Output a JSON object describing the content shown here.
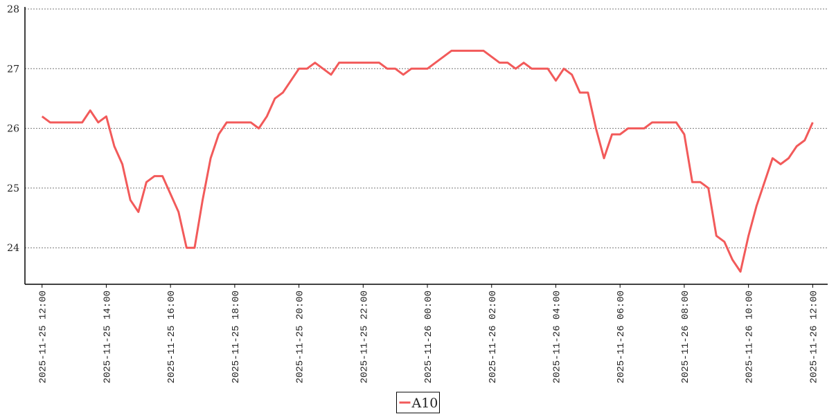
{
  "chart_data": {
    "type": "line",
    "x": [
      "2025-11-25 12:00",
      "2025-11-25 12:15",
      "2025-11-25 12:30",
      "2025-11-25 12:45",
      "2025-11-25 13:00",
      "2025-11-25 13:15",
      "2025-11-25 13:30",
      "2025-11-25 13:45",
      "2025-11-25 14:00",
      "2025-11-25 14:15",
      "2025-11-25 14:30",
      "2025-11-25 14:45",
      "2025-11-25 15:00",
      "2025-11-25 15:15",
      "2025-11-25 15:30",
      "2025-11-25 15:45",
      "2025-11-25 16:00",
      "2025-11-25 16:15",
      "2025-11-25 16:30",
      "2025-11-25 16:45",
      "2025-11-25 17:00",
      "2025-11-25 17:15",
      "2025-11-25 17:30",
      "2025-11-25 17:45",
      "2025-11-25 18:00",
      "2025-11-25 18:15",
      "2025-11-25 18:30",
      "2025-11-25 18:45",
      "2025-11-25 19:00",
      "2025-11-25 19:15",
      "2025-11-25 19:30",
      "2025-11-25 19:45",
      "2025-11-25 20:00",
      "2025-11-25 20:15",
      "2025-11-25 20:30",
      "2025-11-25 20:45",
      "2025-11-25 21:00",
      "2025-11-25 21:15",
      "2025-11-25 21:30",
      "2025-11-25 21:45",
      "2025-11-25 22:00",
      "2025-11-25 22:15",
      "2025-11-25 22:30",
      "2025-11-25 22:45",
      "2025-11-25 23:00",
      "2025-11-25 23:15",
      "2025-11-25 23:30",
      "2025-11-25 23:45",
      "2025-11-26 00:00",
      "2025-11-26 00:15",
      "2025-11-26 00:30",
      "2025-11-26 00:45",
      "2025-11-26 01:00",
      "2025-11-26 01:15",
      "2025-11-26 01:30",
      "2025-11-26 01:45",
      "2025-11-26 02:00",
      "2025-11-26 02:15",
      "2025-11-26 02:30",
      "2025-11-26 02:45",
      "2025-11-26 03:00",
      "2025-11-26 03:15",
      "2025-11-26 03:30",
      "2025-11-26 03:45",
      "2025-11-26 04:00",
      "2025-11-26 04:15",
      "2025-11-26 04:30",
      "2025-11-26 04:45",
      "2025-11-26 05:00",
      "2025-11-26 05:15",
      "2025-11-26 05:30",
      "2025-11-26 05:45",
      "2025-11-26 06:00",
      "2025-11-26 06:15",
      "2025-11-26 06:30",
      "2025-11-26 06:45",
      "2025-11-26 07:00",
      "2025-11-26 07:15",
      "2025-11-26 07:30",
      "2025-11-26 07:45",
      "2025-11-26 08:00",
      "2025-11-26 08:15",
      "2025-11-26 08:30",
      "2025-11-26 08:45",
      "2025-11-26 09:00",
      "2025-11-26 09:15",
      "2025-11-26 09:30",
      "2025-11-26 09:45",
      "2025-11-26 10:00",
      "2025-11-26 10:15",
      "2025-11-26 10:30",
      "2025-11-26 10:45",
      "2025-11-26 11:00",
      "2025-11-26 11:15",
      "2025-11-26 11:30",
      "2025-11-26 11:45",
      "2025-11-26 12:00"
    ],
    "series": [
      {
        "name": "A10",
        "color": "#f25a5a",
        "values": [
          26.2,
          26.1,
          26.1,
          26.1,
          26.1,
          26.1,
          26.3,
          26.1,
          26.2,
          25.7,
          25.4,
          24.8,
          24.6,
          25.1,
          25.2,
          25.2,
          24.9,
          24.6,
          24.0,
          24.0,
          24.8,
          25.5,
          25.9,
          26.1,
          26.1,
          26.1,
          26.1,
          26.0,
          26.2,
          26.5,
          26.6,
          26.8,
          27.0,
          27.0,
          27.1,
          27.0,
          26.9,
          27.1,
          27.1,
          27.1,
          27.1,
          27.1,
          27.1,
          27.0,
          27.0,
          26.9,
          27.0,
          27.0,
          27.0,
          27.1,
          27.2,
          27.3,
          27.3,
          27.3,
          27.3,
          27.3,
          27.2,
          27.1,
          27.1,
          27.0,
          27.1,
          27.0,
          27.0,
          27.0,
          26.8,
          27.0,
          26.9,
          26.6,
          26.6,
          26.0,
          25.5,
          25.9,
          25.9,
          26.0,
          26.0,
          26.0,
          26.1,
          26.1,
          26.1,
          26.1,
          25.9,
          25.1,
          25.1,
          25.0,
          24.2,
          24.1,
          23.8,
          23.6,
          24.2,
          24.7,
          25.1,
          25.5,
          25.4,
          25.5,
          25.7,
          25.8,
          26.1
        ]
      }
    ],
    "xlim": [
      "2025-11-25 11:28",
      "2025-11-26 12:28"
    ],
    "xticks": [
      "2025-11-25 12:00",
      "2025-11-25 14:00",
      "2025-11-25 16:00",
      "2025-11-25 18:00",
      "2025-11-25 20:00",
      "2025-11-25 22:00",
      "2025-11-26 00:00",
      "2025-11-26 02:00",
      "2025-11-26 04:00",
      "2025-11-26 06:00",
      "2025-11-26 08:00",
      "2025-11-26 10:00",
      "2025-11-26 12:00"
    ],
    "ylim": [
      23.4,
      28
    ],
    "yticks": [
      24,
      25,
      26,
      27,
      28
    ],
    "grid": true,
    "legend": "bottom"
  }
}
